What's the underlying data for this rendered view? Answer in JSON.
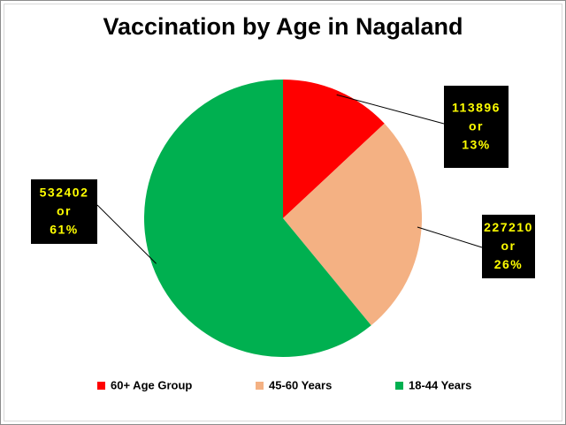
{
  "chart_data": {
    "type": "pie",
    "title": "Vaccination by Age in Nagaland",
    "categories": [
      "60+ Age Group",
      "45-60 Years",
      "18-44 Years"
    ],
    "values": [
      113896,
      227210,
      532402
    ],
    "value_labels": [
      "113896 or 13%",
      "227210 or 26%",
      "532402 or 61%"
    ],
    "colors": [
      "#ff0000",
      "#f4b183",
      "#00b050"
    ],
    "legend": "bottom"
  }
}
